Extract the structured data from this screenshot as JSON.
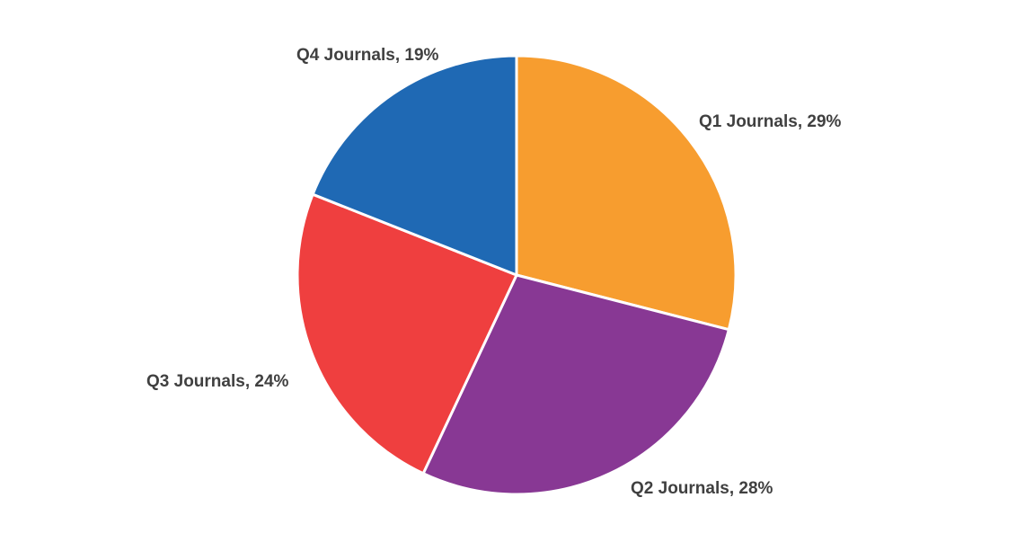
{
  "chart_data": {
    "type": "pie",
    "title": "",
    "slices": [
      {
        "label": "Q1 Journals, 29%",
        "category": "Q1 Journals",
        "value": 29,
        "color": "#F79D2F"
      },
      {
        "label": "Q2 Journals, 28%",
        "category": "Q2 Journals",
        "value": 28,
        "color": "#883894"
      },
      {
        "label": "Q3 Journals, 24%",
        "category": "Q3 Journals",
        "value": 24,
        "color": "#EF3F3F"
      },
      {
        "label": "Q4 Journals, 19%",
        "category": "Q4 Journals",
        "value": 19,
        "color": "#1F69B4"
      }
    ],
    "start_angle": "12 o'clock",
    "direction": "clockwise",
    "legend": "none",
    "slice_border_color": "#ffffff"
  }
}
